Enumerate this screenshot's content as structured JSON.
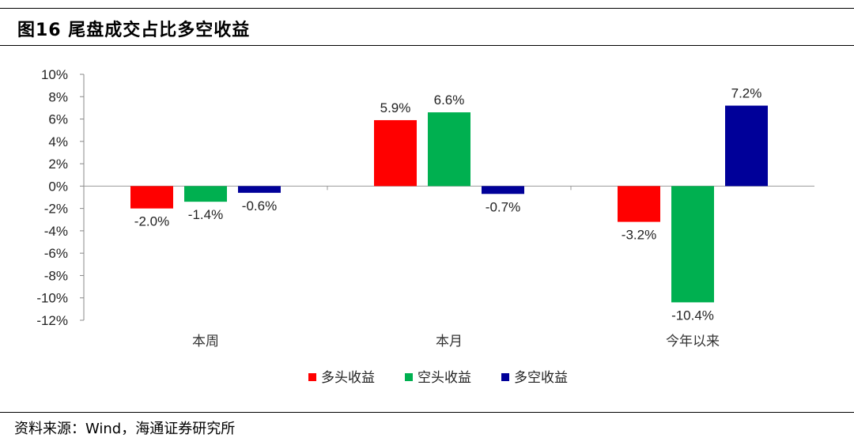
{
  "header": {
    "title": "图16 尾盘成交占比多空收益"
  },
  "footer": {
    "source": "资料来源：Wind，海通证券研究所"
  },
  "chart_data": {
    "type": "bar",
    "categories": [
      "本周",
      "本月",
      "今年以来"
    ],
    "series": [
      {
        "name": "多头收益",
        "color": "#FF0000",
        "values": [
          -2.0,
          5.9,
          -3.2
        ],
        "labels": [
          "-2.0%",
          "5.9%",
          "-3.2%"
        ]
      },
      {
        "name": "空头收益",
        "color": "#00B050",
        "values": [
          -1.4,
          6.6,
          -10.4
        ],
        "labels": [
          "-1.4%",
          "6.6%",
          "-10.4%"
        ]
      },
      {
        "name": "多空收益",
        "color": "#000099",
        "values": [
          -0.6,
          -0.7,
          7.2
        ],
        "labels": [
          "-0.6%",
          "-0.7%",
          "7.2%"
        ]
      }
    ],
    "ylim": [
      -12,
      10
    ],
    "yticks": [
      10,
      8,
      6,
      4,
      2,
      0,
      -2,
      -4,
      -6,
      -8,
      -10,
      -12
    ],
    "ytick_labels": [
      "10%",
      "8%",
      "6%",
      "4%",
      "2%",
      "0%",
      "-2%",
      "-4%",
      "-6%",
      "-8%",
      "-10%",
      "-12%"
    ],
    "grid": false,
    "legend_position": "bottom"
  }
}
